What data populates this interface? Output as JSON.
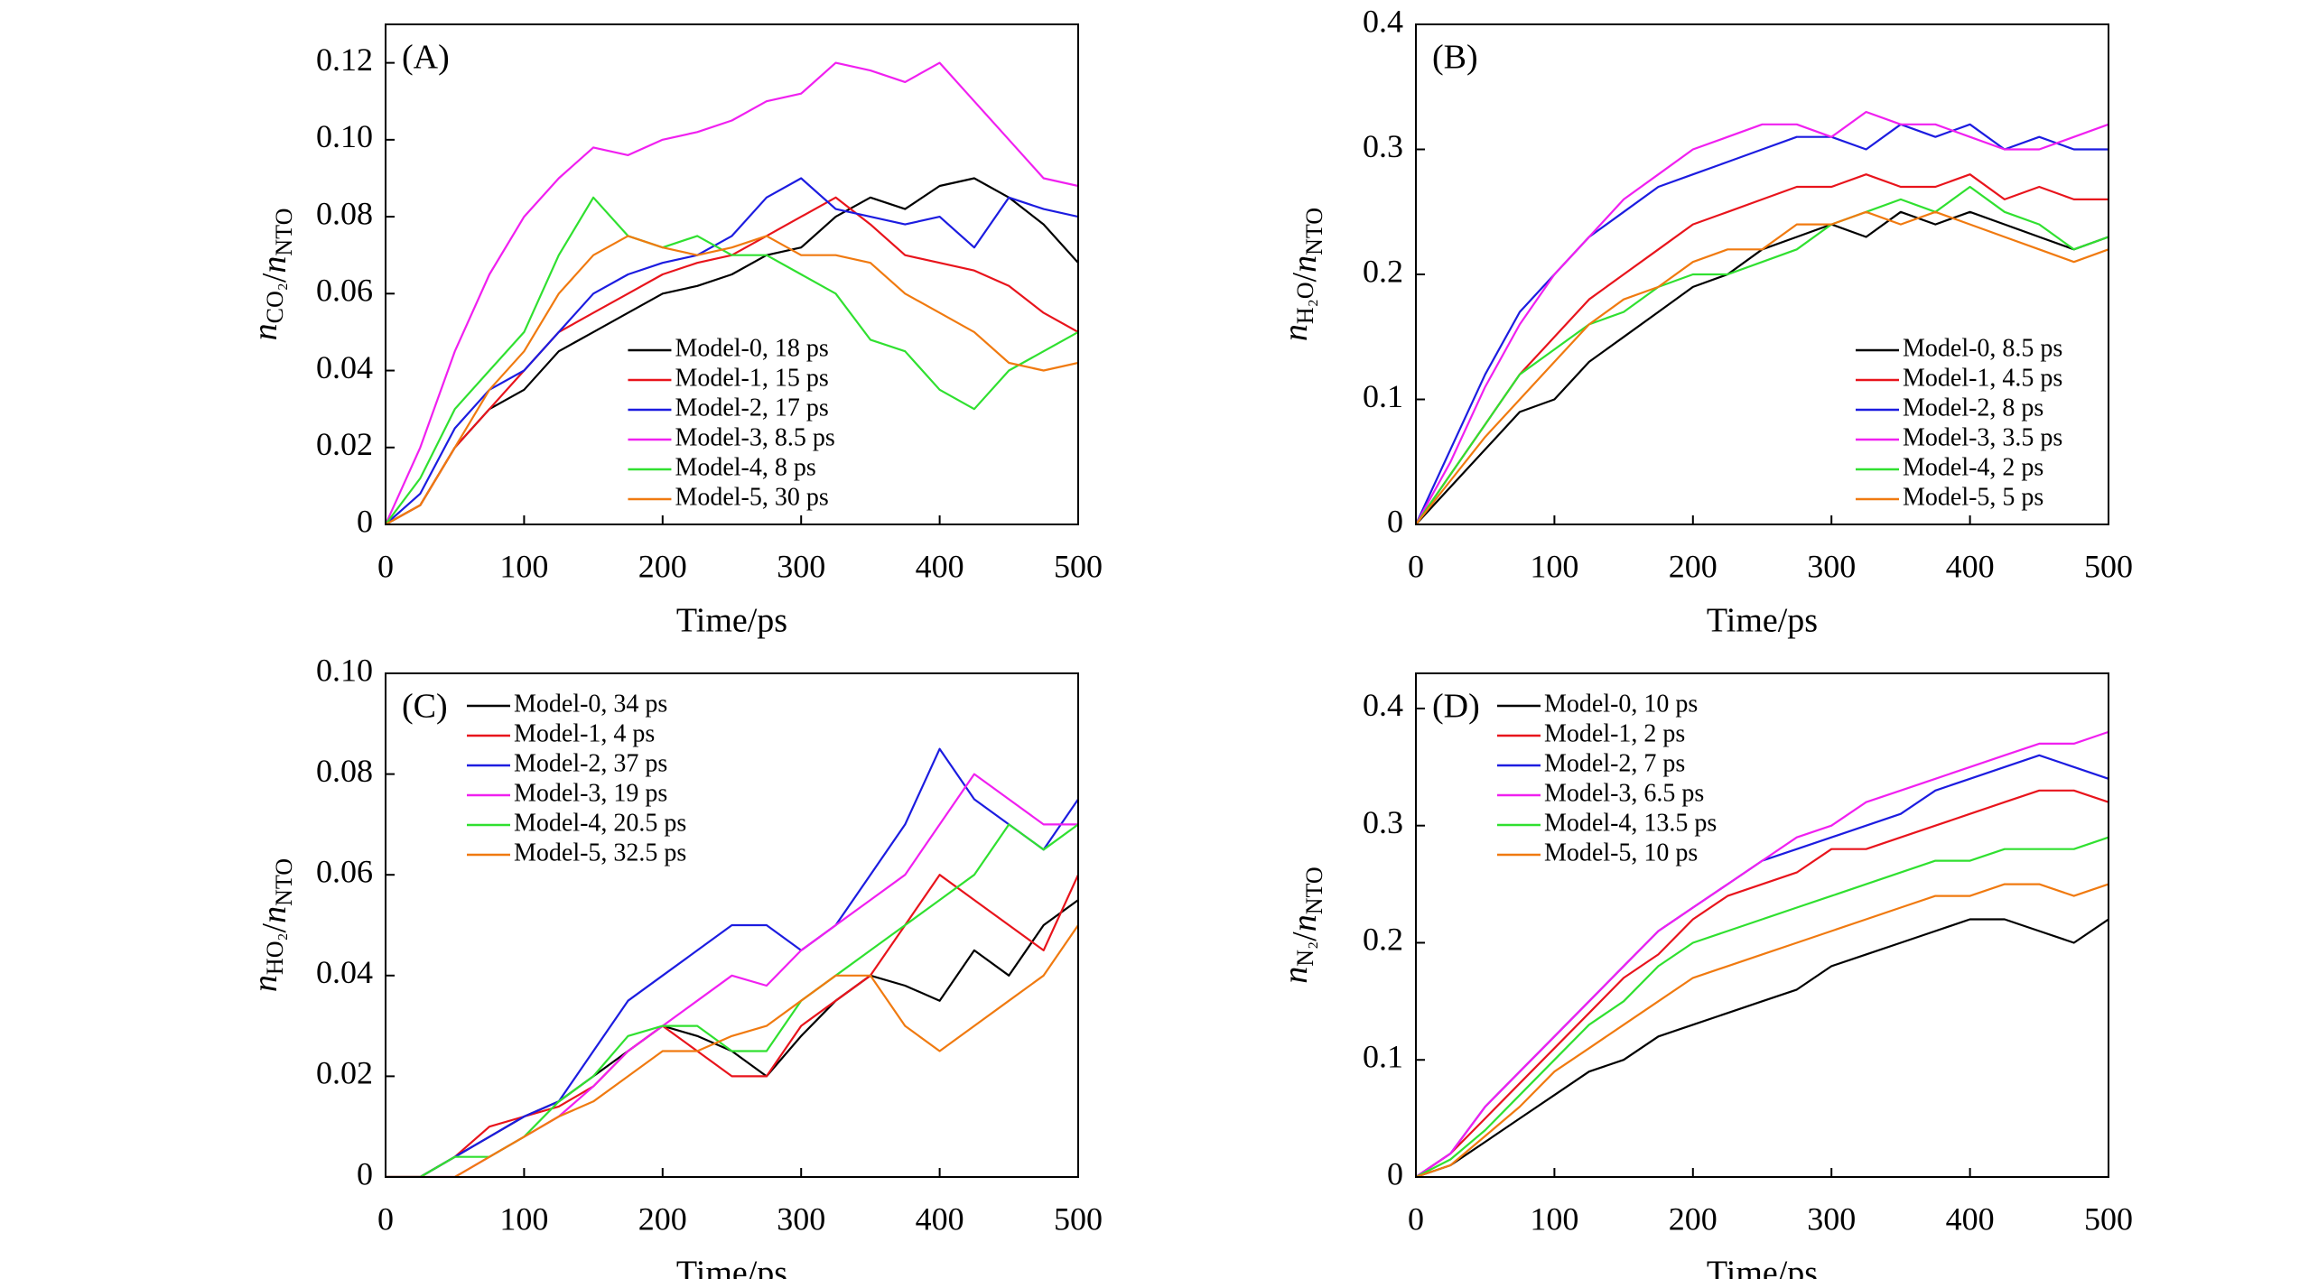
{
  "chart_data": [
    {
      "type": "line",
      "label": "(A)",
      "xlabel": "Time/ps",
      "ylabel": [
        [
          "n",
          "CO₂"
        ],
        "/",
        [
          "n",
          "NTO"
        ]
      ],
      "x": [
        0,
        25,
        50,
        75,
        100,
        125,
        150,
        175,
        200,
        225,
        250,
        275,
        300,
        325,
        350,
        375,
        400,
        425,
        450,
        475,
        500
      ],
      "xlim": [
        0,
        500
      ],
      "xticks": [
        0,
        100,
        200,
        300,
        400,
        500
      ],
      "ylim": [
        0,
        0.13
      ],
      "yticks": [
        0,
        0.02,
        0.04,
        0.06,
        0.08,
        {
          "value": 0.1,
          "label": "0.10"
        },
        0.12
      ],
      "legend": "lower center",
      "series": [
        {
          "name": "Model-0, 18 ps",
          "color": "#000000",
          "values": [
            0,
            0.005,
            0.02,
            0.03,
            0.035,
            0.045,
            0.05,
            0.055,
            0.06,
            0.062,
            0.065,
            0.07,
            0.072,
            0.08,
            0.085,
            0.082,
            0.088,
            0.09,
            0.085,
            0.078,
            0.068
          ]
        },
        {
          "name": "Model-1, 15 ps",
          "color": "#e8141c",
          "values": [
            0,
            0.005,
            0.02,
            0.03,
            0.04,
            0.05,
            0.055,
            0.06,
            0.065,
            0.068,
            0.07,
            0.075,
            0.08,
            0.085,
            0.078,
            0.07,
            0.068,
            0.066,
            0.062,
            0.055,
            0.05
          ]
        },
        {
          "name": "Model-2, 17 ps",
          "color": "#1c1ce0",
          "values": [
            0,
            0.008,
            0.025,
            0.035,
            0.04,
            0.05,
            0.06,
            0.065,
            0.068,
            0.07,
            0.075,
            0.085,
            0.09,
            0.082,
            0.08,
            0.078,
            0.08,
            0.072,
            0.085,
            0.082,
            0.08
          ]
        },
        {
          "name": "Model-3, 8.5 ps",
          "color": "#f020f0",
          "values": [
            0,
            0.02,
            0.045,
            0.065,
            0.08,
            0.09,
            0.098,
            0.096,
            0.1,
            0.102,
            0.105,
            0.11,
            0.112,
            0.12,
            0.118,
            0.115,
            0.12,
            0.11,
            0.1,
            0.09,
            0.088
          ]
        },
        {
          "name": "Model-4, 8 ps",
          "color": "#30e030",
          "values": [
            0,
            0.012,
            0.03,
            0.04,
            0.05,
            0.07,
            0.085,
            0.075,
            0.072,
            0.075,
            0.07,
            0.07,
            0.065,
            0.06,
            0.048,
            0.045,
            0.035,
            0.03,
            0.04,
            0.045,
            0.05
          ]
        },
        {
          "name": "Model-5, 30 ps",
          "color": "#f07a10",
          "values": [
            0,
            0.005,
            0.02,
            0.035,
            0.045,
            0.06,
            0.07,
            0.075,
            0.072,
            0.07,
            0.072,
            0.075,
            0.07,
            0.07,
            0.068,
            0.06,
            0.055,
            0.05,
            0.042,
            0.04,
            0.042
          ]
        }
      ]
    },
    {
      "type": "line",
      "label": "(B)",
      "xlabel": "Time/ps",
      "ylabel": [
        [
          "n",
          "H₂O"
        ],
        "/",
        [
          "n",
          "NTO"
        ]
      ],
      "x": [
        0,
        25,
        50,
        75,
        100,
        125,
        150,
        175,
        200,
        225,
        250,
        275,
        300,
        325,
        350,
        375,
        400,
        425,
        450,
        475,
        500
      ],
      "xlim": [
        0,
        500
      ],
      "xticks": [
        0,
        100,
        200,
        300,
        400,
        500
      ],
      "ylim": [
        0,
        0.4
      ],
      "yticks": [
        0,
        0.1,
        0.2,
        0.3,
        0.4
      ],
      "legend": "lower right",
      "series": [
        {
          "name": "Model-0, 8.5 ps",
          "color": "#000000",
          "values": [
            0,
            0.03,
            0.06,
            0.09,
            0.1,
            0.13,
            0.15,
            0.17,
            0.19,
            0.2,
            0.22,
            0.23,
            0.24,
            0.23,
            0.25,
            0.24,
            0.25,
            0.24,
            0.23,
            0.22,
            0.23
          ]
        },
        {
          "name": "Model-1, 4.5 ps",
          "color": "#e8141c",
          "values": [
            0,
            0.04,
            0.08,
            0.12,
            0.15,
            0.18,
            0.2,
            0.22,
            0.24,
            0.25,
            0.26,
            0.27,
            0.27,
            0.28,
            0.27,
            0.27,
            0.28,
            0.26,
            0.27,
            0.26,
            0.26
          ]
        },
        {
          "name": "Model-2, 8 ps",
          "color": "#1c1ce0",
          "values": [
            0,
            0.06,
            0.12,
            0.17,
            0.2,
            0.23,
            0.25,
            0.27,
            0.28,
            0.29,
            0.3,
            0.31,
            0.31,
            0.3,
            0.32,
            0.31,
            0.32,
            0.3,
            0.31,
            0.3,
            0.3
          ]
        },
        {
          "name": "Model-3, 3.5 ps",
          "color": "#f020f0",
          "values": [
            0,
            0.05,
            0.11,
            0.16,
            0.2,
            0.23,
            0.26,
            0.28,
            0.3,
            0.31,
            0.32,
            0.32,
            0.31,
            0.33,
            0.32,
            0.32,
            0.31,
            0.3,
            0.3,
            0.31,
            0.32
          ]
        },
        {
          "name": "Model-4, 2 ps",
          "color": "#30e030",
          "values": [
            0,
            0.04,
            0.08,
            0.12,
            0.14,
            0.16,
            0.17,
            0.19,
            0.2,
            0.2,
            0.21,
            0.22,
            0.24,
            0.25,
            0.26,
            0.25,
            0.27,
            0.25,
            0.24,
            0.22,
            0.23
          ]
        },
        {
          "name": "Model-5, 5 ps",
          "color": "#f07a10",
          "values": [
            0,
            0.035,
            0.07,
            0.1,
            0.13,
            0.16,
            0.18,
            0.19,
            0.21,
            0.22,
            0.22,
            0.24,
            0.24,
            0.25,
            0.24,
            0.25,
            0.24,
            0.23,
            0.22,
            0.21,
            0.22
          ]
        }
      ]
    },
    {
      "type": "line",
      "label": "(C)",
      "xlabel": "Time/ps",
      "ylabel": [
        [
          "n",
          "HO₂"
        ],
        "/",
        [
          "n",
          "NTO"
        ]
      ],
      "x": [
        0,
        25,
        50,
        75,
        100,
        125,
        150,
        175,
        200,
        225,
        250,
        275,
        300,
        325,
        350,
        375,
        400,
        425,
        450,
        475,
        500
      ],
      "xlim": [
        0,
        500
      ],
      "xticks": [
        0,
        100,
        200,
        300,
        400,
        500
      ],
      "ylim": [
        0,
        0.1
      ],
      "yticks": [
        0,
        0.02,
        0.04,
        0.06,
        0.08,
        {
          "value": 0.1,
          "label": "0.10"
        }
      ],
      "legend": "upper left",
      "series": [
        {
          "name": "Model-0, 34 ps",
          "color": "#000000",
          "values": [
            0,
            0,
            0.004,
            0.008,
            0.012,
            0.015,
            0.02,
            0.025,
            0.03,
            0.028,
            0.025,
            0.02,
            0.028,
            0.035,
            0.04,
            0.038,
            0.035,
            0.045,
            0.04,
            0.05,
            0.055
          ]
        },
        {
          "name": "Model-1, 4 ps",
          "color": "#e8141c",
          "values": [
            0,
            0,
            0.004,
            0.01,
            0.012,
            0.014,
            0.018,
            0.025,
            0.03,
            0.025,
            0.02,
            0.02,
            0.03,
            0.035,
            0.04,
            0.05,
            0.06,
            0.055,
            0.05,
            0.045,
            0.06
          ]
        },
        {
          "name": "Model-2, 37 ps",
          "color": "#1c1ce0",
          "values": [
            0,
            0,
            0.004,
            0.008,
            0.012,
            0.015,
            0.025,
            0.035,
            0.04,
            0.045,
            0.05,
            0.05,
            0.045,
            0.05,
            0.06,
            0.07,
            0.085,
            0.075,
            0.07,
            0.065,
            0.075
          ]
        },
        {
          "name": "Model-3, 19 ps",
          "color": "#f020f0",
          "values": [
            0,
            0,
            0,
            0.004,
            0.008,
            0.012,
            0.018,
            0.025,
            0.03,
            0.035,
            0.04,
            0.038,
            0.045,
            0.05,
            0.055,
            0.06,
            0.07,
            0.08,
            0.075,
            0.07,
            0.07
          ]
        },
        {
          "name": "Model-4, 20.5 ps",
          "color": "#30e030",
          "values": [
            0,
            0,
            0.004,
            0.004,
            0.008,
            0.015,
            0.02,
            0.028,
            0.03,
            0.03,
            0.025,
            0.025,
            0.035,
            0.04,
            0.045,
            0.05,
            0.055,
            0.06,
            0.07,
            0.065,
            0.07
          ]
        },
        {
          "name": "Model-5, 32.5 ps",
          "color": "#f07a10",
          "values": [
            0,
            0,
            0,
            0.004,
            0.008,
            0.012,
            0.015,
            0.02,
            0.025,
            0.025,
            0.028,
            0.03,
            0.035,
            0.04,
            0.04,
            0.03,
            0.025,
            0.03,
            0.035,
            0.04,
            0.05
          ]
        }
      ]
    },
    {
      "type": "line",
      "label": "(D)",
      "xlabel": "Time/ps",
      "ylabel": [
        [
          "n",
          "N₂"
        ],
        "/",
        [
          "n",
          "NTO"
        ]
      ],
      "x": [
        0,
        25,
        50,
        75,
        100,
        125,
        150,
        175,
        200,
        225,
        250,
        275,
        300,
        325,
        350,
        375,
        400,
        425,
        450,
        475,
        500
      ],
      "xlim": [
        0,
        500
      ],
      "xticks": [
        0,
        100,
        200,
        300,
        400,
        500
      ],
      "ylim": [
        0,
        0.43
      ],
      "yticks": [
        0,
        0.1,
        0.2,
        0.3,
        0.4
      ],
      "legend": "upper left",
      "series": [
        {
          "name": "Model-0, 10 ps",
          "color": "#000000",
          "values": [
            0,
            0.01,
            0.03,
            0.05,
            0.07,
            0.09,
            0.1,
            0.12,
            0.13,
            0.14,
            0.15,
            0.16,
            0.18,
            0.19,
            0.2,
            0.21,
            0.22,
            0.22,
            0.21,
            0.2,
            0.22
          ]
        },
        {
          "name": "Model-1, 2 ps",
          "color": "#e8141c",
          "values": [
            0,
            0.02,
            0.05,
            0.08,
            0.11,
            0.14,
            0.17,
            0.19,
            0.22,
            0.24,
            0.25,
            0.26,
            0.28,
            0.28,
            0.29,
            0.3,
            0.31,
            0.32,
            0.33,
            0.33,
            0.32
          ]
        },
        {
          "name": "Model-2, 7 ps",
          "color": "#1c1ce0",
          "values": [
            0,
            0.02,
            0.06,
            0.09,
            0.12,
            0.15,
            0.18,
            0.21,
            0.23,
            0.25,
            0.27,
            0.28,
            0.29,
            0.3,
            0.31,
            0.33,
            0.34,
            0.35,
            0.36,
            0.35,
            0.34
          ]
        },
        {
          "name": "Model-3, 6.5 ps",
          "color": "#f020f0",
          "values": [
            0,
            0.02,
            0.06,
            0.09,
            0.12,
            0.15,
            0.18,
            0.21,
            0.23,
            0.25,
            0.27,
            0.29,
            0.3,
            0.32,
            0.33,
            0.34,
            0.35,
            0.36,
            0.37,
            0.37,
            0.38
          ]
        },
        {
          "name": "Model-4, 13.5 ps",
          "color": "#30e030",
          "values": [
            0,
            0.015,
            0.04,
            0.07,
            0.1,
            0.13,
            0.15,
            0.18,
            0.2,
            0.21,
            0.22,
            0.23,
            0.24,
            0.25,
            0.26,
            0.27,
            0.27,
            0.28,
            0.28,
            0.28,
            0.29
          ]
        },
        {
          "name": "Model-5, 10 ps",
          "color": "#f07a10",
          "values": [
            0,
            0.01,
            0.035,
            0.06,
            0.09,
            0.11,
            0.13,
            0.15,
            0.17,
            0.18,
            0.19,
            0.2,
            0.21,
            0.22,
            0.23,
            0.24,
            0.24,
            0.25,
            0.25,
            0.24,
            0.25
          ]
        }
      ]
    }
  ]
}
